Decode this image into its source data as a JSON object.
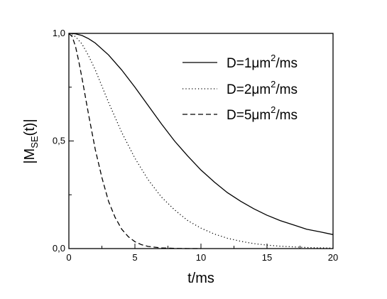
{
  "chart_data": {
    "type": "line",
    "xlabel": "t/ms",
    "ylabel": "|M_SE(t)|",
    "ylabel_parts": {
      "prefix": "|M",
      "sub": "SE",
      "suffix": "(t)|"
    },
    "xlim": [
      0,
      20
    ],
    "ylim": [
      0,
      1.0
    ],
    "x_ticks": [
      0,
      5,
      10,
      15,
      20
    ],
    "x_tick_labels": [
      "0",
      "5",
      "10",
      "15",
      "20"
    ],
    "y_ticks": [
      0,
      0.5,
      1.0
    ],
    "y_tick_labels": [
      "0,0",
      "0,5",
      "1,0"
    ],
    "grid": false,
    "legend_position": "top-right",
    "series": [
      {
        "name": "D=1μm²/ms",
        "label_parts": {
          "prefix": "D=1",
          "mu": "μ",
          "unit": "m",
          "sup": "2",
          "suffix": "/ms"
        },
        "style": "solid",
        "x": [
          0,
          0.5,
          1,
          1.5,
          2,
          3,
          4,
          5,
          6,
          7,
          8,
          9,
          10,
          11,
          12,
          13,
          14,
          15,
          16,
          17,
          18,
          19,
          20
        ],
        "y": [
          1.0,
          0.998,
          0.99,
          0.975,
          0.955,
          0.9,
          0.83,
          0.75,
          0.665,
          0.58,
          0.5,
          0.43,
          0.365,
          0.31,
          0.26,
          0.22,
          0.185,
          0.155,
          0.13,
          0.11,
          0.09,
          0.078,
          0.065
        ]
      },
      {
        "name": "D=2μm²/ms",
        "label_parts": {
          "prefix": "D=2",
          "mu": "μ",
          "unit": "m",
          "sup": "2",
          "suffix": "/ms"
        },
        "style": "dotted",
        "x": [
          0,
          0.5,
          1,
          1.5,
          2,
          2.5,
          3,
          4,
          5,
          6,
          7,
          8,
          9,
          10,
          11,
          12,
          13,
          14,
          15,
          16,
          18,
          20
        ],
        "y": [
          1.0,
          0.985,
          0.95,
          0.895,
          0.83,
          0.755,
          0.68,
          0.54,
          0.42,
          0.32,
          0.24,
          0.18,
          0.13,
          0.095,
          0.068,
          0.048,
          0.034,
          0.023,
          0.016,
          0.011,
          0.005,
          0.002
        ]
      },
      {
        "name": "D=5μm²/ms",
        "label_parts": {
          "prefix": "D=5",
          "mu": "μ",
          "unit": "m",
          "sup": "2",
          "suffix": "/ms"
        },
        "style": "dashed",
        "x": [
          0,
          0.25,
          0.5,
          0.75,
          1,
          1.5,
          2,
          2.5,
          3,
          3.5,
          4,
          4.5,
          5,
          5.5,
          6,
          7,
          8,
          9,
          10
        ],
        "y": [
          1.0,
          0.985,
          0.94,
          0.87,
          0.79,
          0.62,
          0.46,
          0.33,
          0.22,
          0.145,
          0.09,
          0.055,
          0.032,
          0.018,
          0.01,
          0.003,
          0.001,
          0.0,
          0.0
        ]
      }
    ]
  }
}
